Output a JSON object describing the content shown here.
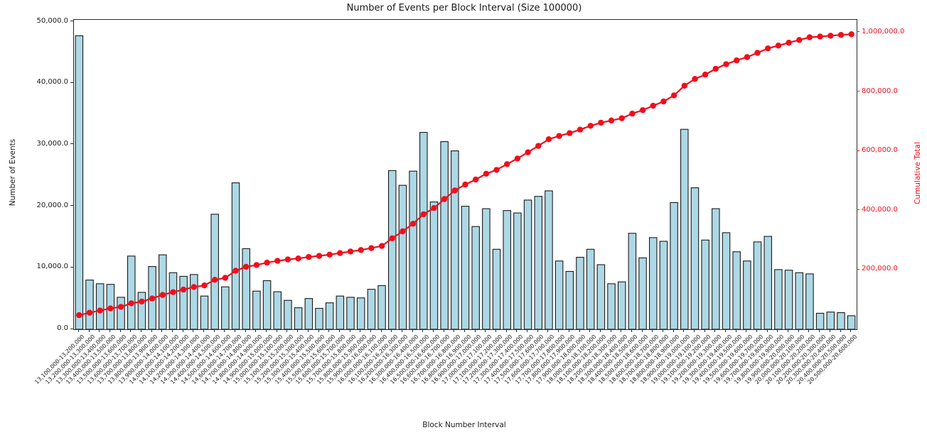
{
  "title": "Number of Events per Block Interval (Size 100000)",
  "chart_data": {
    "type": "bar",
    "combo": "bar+line",
    "title": "Number of Events per Block Interval (Size 100000)",
    "xlabel": "Block Number Interval",
    "ylabel_left": "Number of Events",
    "ylabel_right": "Cumulative Total",
    "grid": false,
    "legend": "none",
    "colors": {
      "bar_fill": "#ADD8E6",
      "bar_edge": "#1a1a1a",
      "line": "#f10e1c",
      "axis_text": "#1a1a1a",
      "right_axis_text": "#f10e1c",
      "spine": "#2b2b2b"
    },
    "left_axis": {
      "min": 0,
      "max": 50290,
      "tick_values": [
        0,
        10000,
        20000,
        30000,
        40000,
        50000
      ],
      "tick_labels": [
        "0.0",
        "10,000.0",
        "20,000.0",
        "30,000.0",
        "40,000.0",
        "50,000.0"
      ]
    },
    "right_axis": {
      "min": 0,
      "max": 1042800,
      "tick_values": [
        200000,
        400000,
        600000,
        800000,
        1000000
      ],
      "tick_labels": [
        "200,000.0",
        "400,000.0",
        "600,000.0",
        "800,000.0",
        "1,000,000.0"
      ]
    },
    "categories": [
      "13,100,000-13,200,000",
      "13,200,000-13,300,000",
      "13,300,000-13,400,000",
      "13,400,000-13,500,000",
      "13,500,000-13,600,000",
      "13,600,000-13,700,000",
      "13,700,000-13,800,000",
      "13,800,000-13,900,000",
      "13,900,000-14,000,000",
      "14,000,000-14,100,000",
      "14,100,000-14,200,000",
      "14,200,000-14,300,000",
      "14,300,000-14,400,000",
      "14,400,000-14,500,000",
      "14,500,000-14,600,000",
      "14,600,000-14,700,000",
      "14,700,000-14,800,000",
      "14,800,000-14,900,000",
      "14,900,000-15,000,000",
      "15,000,000-15,100,000",
      "15,100,000-15,200,000",
      "15,200,000-15,300,000",
      "15,300,000-15,400,000",
      "15,400,000-15,500,000",
      "15,500,000-15,600,000",
      "15,600,000-15,700,000",
      "15,700,000-15,800,000",
      "15,800,000-15,900,000",
      "15,900,000-16,000,000",
      "16,000,000-16,100,000",
      "16,100,000-16,200,000",
      "16,200,000-16,300,000",
      "16,300,000-16,400,000",
      "16,400,000-16,500,000",
      "16,500,000-16,600,000",
      "16,600,000-16,700,000",
      "16,700,000-16,800,000",
      "16,800,000-16,900,000",
      "16,900,000-17,000,000",
      "17,000,000-17,100,000",
      "17,100,000-17,200,000",
      "17,200,000-17,300,000",
      "17,300,000-17,400,000",
      "17,400,000-17,500,000",
      "17,500,000-17,600,000",
      "17,600,000-17,700,000",
      "17,700,000-17,800,000",
      "17,800,000-17,900,000",
      "17,900,000-18,000,000",
      "18,000,000-18,100,000",
      "18,100,000-18,200,000",
      "18,200,000-18,300,000",
      "18,300,000-18,400,000",
      "18,400,000-18,500,000",
      "18,500,000-18,600,000",
      "18,600,000-18,700,000",
      "18,700,000-18,800,000",
      "18,800,000-18,900,000",
      "18,900,000-19,000,000",
      "19,000,000-19,100,000",
      "19,100,000-19,200,000",
      "19,200,000-19,300,000",
      "19,300,000-19,400,000",
      "19,400,000-19,500,000",
      "19,500,000-19,600,000",
      "19,600,000-19,700,000",
      "19,700,000-19,800,000",
      "19,800,000-19,900,000",
      "19,900,000-20,000,000",
      "20,000,000-20,100,000",
      "20,100,000-20,200,000",
      "20,200,000-20,300,000",
      "20,300,000-20,400,000",
      "20,400,000-20,500,000",
      "20,500,000-20,600,000"
    ],
    "series": [
      {
        "name": "Number of Events",
        "type": "bar",
        "axis": "left",
        "values": [
          47700,
          8000,
          7400,
          7300,
          5200,
          11900,
          6000,
          10200,
          12100,
          9200,
          8600,
          8900,
          5400,
          18700,
          6900,
          23800,
          13100,
          6200,
          7900,
          6100,
          4700,
          3500,
          5000,
          3400,
          4300,
          5400,
          5200,
          5100,
          6500,
          7100,
          25800,
          23400,
          25700,
          32000,
          20700,
          30500,
          29000,
          20000,
          16700,
          19600,
          13000,
          19300,
          18900,
          21000,
          21600,
          22500,
          11100,
          9400,
          11700,
          13000,
          10500,
          7400,
          7700,
          15600,
          11600,
          14900,
          14300,
          20600,
          32500,
          23000,
          14500,
          19600,
          15700,
          12600,
          11100,
          14200,
          15100,
          9700,
          9600,
          9200,
          9000,
          2600,
          2800,
          2700,
          2200
        ]
      },
      {
        "name": "Cumulative Total",
        "type": "line",
        "axis": "right",
        "values": [
          47700,
          55700,
          63100,
          70400,
          75600,
          87500,
          93500,
          103700,
          115800,
          125000,
          133600,
          142500,
          147900,
          166600,
          173500,
          197300,
          210400,
          216600,
          224500,
          230600,
          235300,
          238800,
          243800,
          247200,
          251500,
          256900,
          262100,
          267200,
          273700,
          280800,
          306600,
          330000,
          355700,
          387700,
          408400,
          438900,
          467900,
          487900,
          504600,
          524200,
          537200,
          556500,
          575400,
          596400,
          618000,
          640500,
          651600,
          661000,
          672700,
          685700,
          696200,
          703600,
          711300,
          726900,
          738500,
          753400,
          767700,
          788300,
          820800,
          843800,
          858300,
          877900,
          893600,
          906200,
          917300,
          931500,
          946600,
          956300,
          965900,
          975100,
          984100,
          986700,
          989500,
          992200,
          994400
        ]
      }
    ]
  }
}
